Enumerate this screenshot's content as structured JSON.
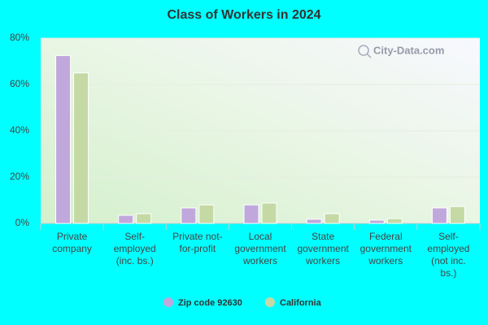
{
  "chart_data": {
    "type": "bar",
    "title": "Class of Workers in 2024",
    "watermark": "City-Data.com",
    "categories": [
      "Private\ncompany",
      "Self-\nemployed\n(inc. bs.)",
      "Private not-\nfor-profit",
      "Local\ngovernment\nworkers",
      "State\ngovernment\nworkers",
      "Federal\ngovernment\nworkers",
      "Self-\nemployed\n(not inc.\nbs.)"
    ],
    "series": [
      {
        "name": "Zip code 92630",
        "color": "#c0a8dc",
        "values": [
          72.5,
          3.5,
          6.7,
          8,
          1.8,
          1.4,
          6.7
        ]
      },
      {
        "name": "California",
        "color": "#c5d9a5",
        "values": [
          65,
          4.2,
          8,
          8.8,
          4.2,
          2.1,
          7.3
        ]
      }
    ],
    "ylim": [
      0,
      80
    ],
    "yticks": [
      {
        "value": 0,
        "label": "0%"
      },
      {
        "value": 20,
        "label": "20%"
      },
      {
        "value": 40,
        "label": "40%"
      },
      {
        "value": 60,
        "label": "60%"
      },
      {
        "value": 80,
        "label": "80%"
      }
    ],
    "grid": true
  }
}
